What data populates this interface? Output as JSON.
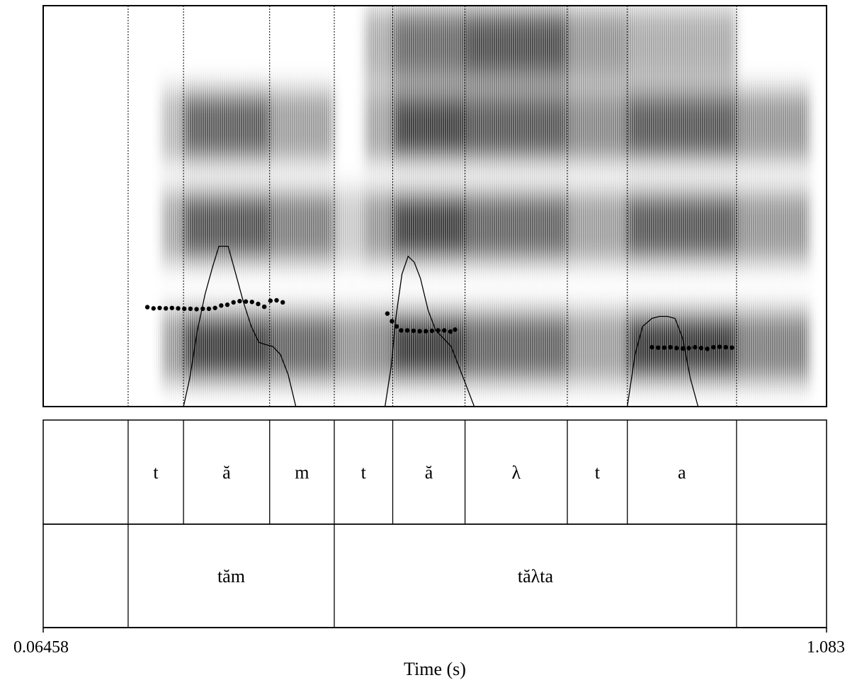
{
  "time_axis": {
    "start_label": "0.06458",
    "end_label": "1.083",
    "title": "Time (s)",
    "start": 0.06458,
    "end": 1.083
  },
  "boundaries": [
    0.175,
    0.247,
    0.359,
    0.443,
    0.519,
    0.613,
    0.746,
    0.824,
    0.966
  ],
  "segment_tier": [
    {
      "label": "",
      "start": 0.06458,
      "end": 0.175
    },
    {
      "label": "t",
      "start": 0.175,
      "end": 0.247
    },
    {
      "label": "ă",
      "start": 0.247,
      "end": 0.359
    },
    {
      "label": "m",
      "start": 0.359,
      "end": 0.443
    },
    {
      "label": "t",
      "start": 0.443,
      "end": 0.519
    },
    {
      "label": "ă",
      "start": 0.519,
      "end": 0.613
    },
    {
      "label": "λ",
      "start": 0.613,
      "end": 0.746
    },
    {
      "label": "t",
      "start": 0.746,
      "end": 0.824
    },
    {
      "label": "a",
      "start": 0.824,
      "end": 0.966
    },
    {
      "label": "",
      "start": 0.966,
      "end": 1.083
    }
  ],
  "word_tier": [
    {
      "label": "",
      "start": 0.06458,
      "end": 0.175
    },
    {
      "label": "tăm",
      "start": 0.175,
      "end": 0.443
    },
    {
      "label": "tăλta",
      "start": 0.443,
      "end": 0.966
    },
    {
      "label": "",
      "start": 0.966,
      "end": 1.083
    }
  ],
  "pitch_track": [
    {
      "t": 0.2,
      "v": 0.248
    },
    {
      "t": 0.208,
      "v": 0.245
    },
    {
      "t": 0.216,
      "v": 0.246
    },
    {
      "t": 0.224,
      "v": 0.245
    },
    {
      "t": 0.232,
      "v": 0.246
    },
    {
      "t": 0.24,
      "v": 0.245
    },
    {
      "t": 0.248,
      "v": 0.244
    },
    {
      "t": 0.256,
      "v": 0.244
    },
    {
      "t": 0.264,
      "v": 0.243
    },
    {
      "t": 0.272,
      "v": 0.244
    },
    {
      "t": 0.28,
      "v": 0.244
    },
    {
      "t": 0.288,
      "v": 0.246
    },
    {
      "t": 0.296,
      "v": 0.252
    },
    {
      "t": 0.304,
      "v": 0.254
    },
    {
      "t": 0.312,
      "v": 0.26
    },
    {
      "t": 0.32,
      "v": 0.263
    },
    {
      "t": 0.328,
      "v": 0.262
    },
    {
      "t": 0.336,
      "v": 0.261
    },
    {
      "t": 0.344,
      "v": 0.256
    },
    {
      "t": 0.352,
      "v": 0.249
    },
    {
      "t": 0.36,
      "v": 0.264
    },
    {
      "t": 0.368,
      "v": 0.265
    },
    {
      "t": 0.376,
      "v": 0.26
    },
    {
      "t": 0.512,
      "v": 0.232
    },
    {
      "t": 0.518,
      "v": 0.213
    },
    {
      "t": 0.524,
      "v": 0.2
    },
    {
      "t": 0.53,
      "v": 0.19
    },
    {
      "t": 0.538,
      "v": 0.19
    },
    {
      "t": 0.546,
      "v": 0.189
    },
    {
      "t": 0.554,
      "v": 0.188
    },
    {
      "t": 0.562,
      "v": 0.188
    },
    {
      "t": 0.57,
      "v": 0.189
    },
    {
      "t": 0.578,
      "v": 0.19
    },
    {
      "t": 0.586,
      "v": 0.19
    },
    {
      "t": 0.594,
      "v": 0.187
    },
    {
      "t": 0.6,
      "v": 0.192
    },
    {
      "t": 0.856,
      "v": 0.148
    },
    {
      "t": 0.864,
      "v": 0.147
    },
    {
      "t": 0.872,
      "v": 0.147
    },
    {
      "t": 0.88,
      "v": 0.148
    },
    {
      "t": 0.888,
      "v": 0.146
    },
    {
      "t": 0.896,
      "v": 0.145
    },
    {
      "t": 0.904,
      "v": 0.146
    },
    {
      "t": 0.912,
      "v": 0.148
    },
    {
      "t": 0.92,
      "v": 0.146
    },
    {
      "t": 0.928,
      "v": 0.144
    },
    {
      "t": 0.936,
      "v": 0.148
    },
    {
      "t": 0.944,
      "v": 0.149
    },
    {
      "t": 0.952,
      "v": 0.148
    },
    {
      "t": 0.96,
      "v": 0.147
    }
  ],
  "intensity_track": [
    {
      "t": 0.06458,
      "v": 0.0
    },
    {
      "t": 0.247,
      "v": 0.0
    },
    {
      "t": 0.255,
      "v": 0.07
    },
    {
      "t": 0.265,
      "v": 0.19
    },
    {
      "t": 0.275,
      "v": 0.28
    },
    {
      "t": 0.285,
      "v": 0.35
    },
    {
      "t": 0.293,
      "v": 0.4
    },
    {
      "t": 0.305,
      "v": 0.4
    },
    {
      "t": 0.315,
      "v": 0.33
    },
    {
      "t": 0.325,
      "v": 0.26
    },
    {
      "t": 0.335,
      "v": 0.2
    },
    {
      "t": 0.345,
      "v": 0.16
    },
    {
      "t": 0.353,
      "v": 0.155
    },
    {
      "t": 0.363,
      "v": 0.15
    },
    {
      "t": 0.373,
      "v": 0.13
    },
    {
      "t": 0.383,
      "v": 0.08
    },
    {
      "t": 0.393,
      "v": 0.0
    },
    {
      "t": 0.509,
      "v": 0.0
    },
    {
      "t": 0.517,
      "v": 0.1
    },
    {
      "t": 0.523,
      "v": 0.22
    },
    {
      "t": 0.531,
      "v": 0.33
    },
    {
      "t": 0.539,
      "v": 0.375
    },
    {
      "t": 0.547,
      "v": 0.36
    },
    {
      "t": 0.555,
      "v": 0.32
    },
    {
      "t": 0.565,
      "v": 0.24
    },
    {
      "t": 0.575,
      "v": 0.19
    },
    {
      "t": 0.585,
      "v": 0.17
    },
    {
      "t": 0.595,
      "v": 0.15
    },
    {
      "t": 0.605,
      "v": 0.1
    },
    {
      "t": 0.615,
      "v": 0.05
    },
    {
      "t": 0.625,
      "v": 0.0
    },
    {
      "t": 0.824,
      "v": 0.0
    },
    {
      "t": 0.834,
      "v": 0.13
    },
    {
      "t": 0.844,
      "v": 0.2
    },
    {
      "t": 0.856,
      "v": 0.22
    },
    {
      "t": 0.866,
      "v": 0.225
    },
    {
      "t": 0.876,
      "v": 0.225
    },
    {
      "t": 0.886,
      "v": 0.22
    },
    {
      "t": 0.896,
      "v": 0.17
    },
    {
      "t": 0.906,
      "v": 0.07
    },
    {
      "t": 0.916,
      "v": 0.0
    },
    {
      "t": 1.083,
      "v": 0.0
    }
  ],
  "spectrogram": [
    {
      "start": 0.218,
      "end": 0.247,
      "bands": [
        [
          0.7,
          0.32
        ],
        [
          0.45,
          0.4
        ],
        [
          0.15,
          0.45
        ]
      ]
    },
    {
      "start": 0.247,
      "end": 0.359,
      "bands": [
        [
          0.7,
          0.75
        ],
        [
          0.45,
          0.8
        ],
        [
          0.15,
          0.9
        ]
      ]
    },
    {
      "start": 0.359,
      "end": 0.443,
      "bands": [
        [
          0.7,
          0.45
        ],
        [
          0.45,
          0.6
        ],
        [
          0.15,
          0.72
        ]
      ]
    },
    {
      "start": 0.443,
      "end": 0.482,
      "bands": [
        [
          0.45,
          0.25
        ],
        [
          0.15,
          0.5
        ]
      ]
    },
    {
      "start": 0.482,
      "end": 0.519,
      "bands": [
        [
          0.9,
          0.38
        ],
        [
          0.7,
          0.42
        ],
        [
          0.45,
          0.48
        ],
        [
          0.15,
          0.55
        ]
      ]
    },
    {
      "start": 0.519,
      "end": 0.613,
      "bands": [
        [
          0.9,
          0.7
        ],
        [
          0.7,
          0.88
        ],
        [
          0.45,
          0.9
        ],
        [
          0.15,
          0.92
        ]
      ]
    },
    {
      "start": 0.613,
      "end": 0.746,
      "bands": [
        [
          0.9,
          0.82
        ],
        [
          0.7,
          0.78
        ],
        [
          0.45,
          0.72
        ],
        [
          0.15,
          0.72
        ]
      ]
    },
    {
      "start": 0.746,
      "end": 0.824,
      "bands": [
        [
          0.9,
          0.5
        ],
        [
          0.7,
          0.55
        ],
        [
          0.45,
          0.45
        ],
        [
          0.15,
          0.45
        ]
      ]
    },
    {
      "start": 0.824,
      "end": 0.966,
      "bands": [
        [
          0.9,
          0.4
        ],
        [
          0.7,
          0.78
        ],
        [
          0.45,
          0.78
        ],
        [
          0.15,
          0.92
        ]
      ]
    },
    {
      "start": 0.966,
      "end": 1.062,
      "bands": [
        [
          0.7,
          0.5
        ],
        [
          0.45,
          0.5
        ],
        [
          0.15,
          0.6
        ]
      ]
    }
  ]
}
